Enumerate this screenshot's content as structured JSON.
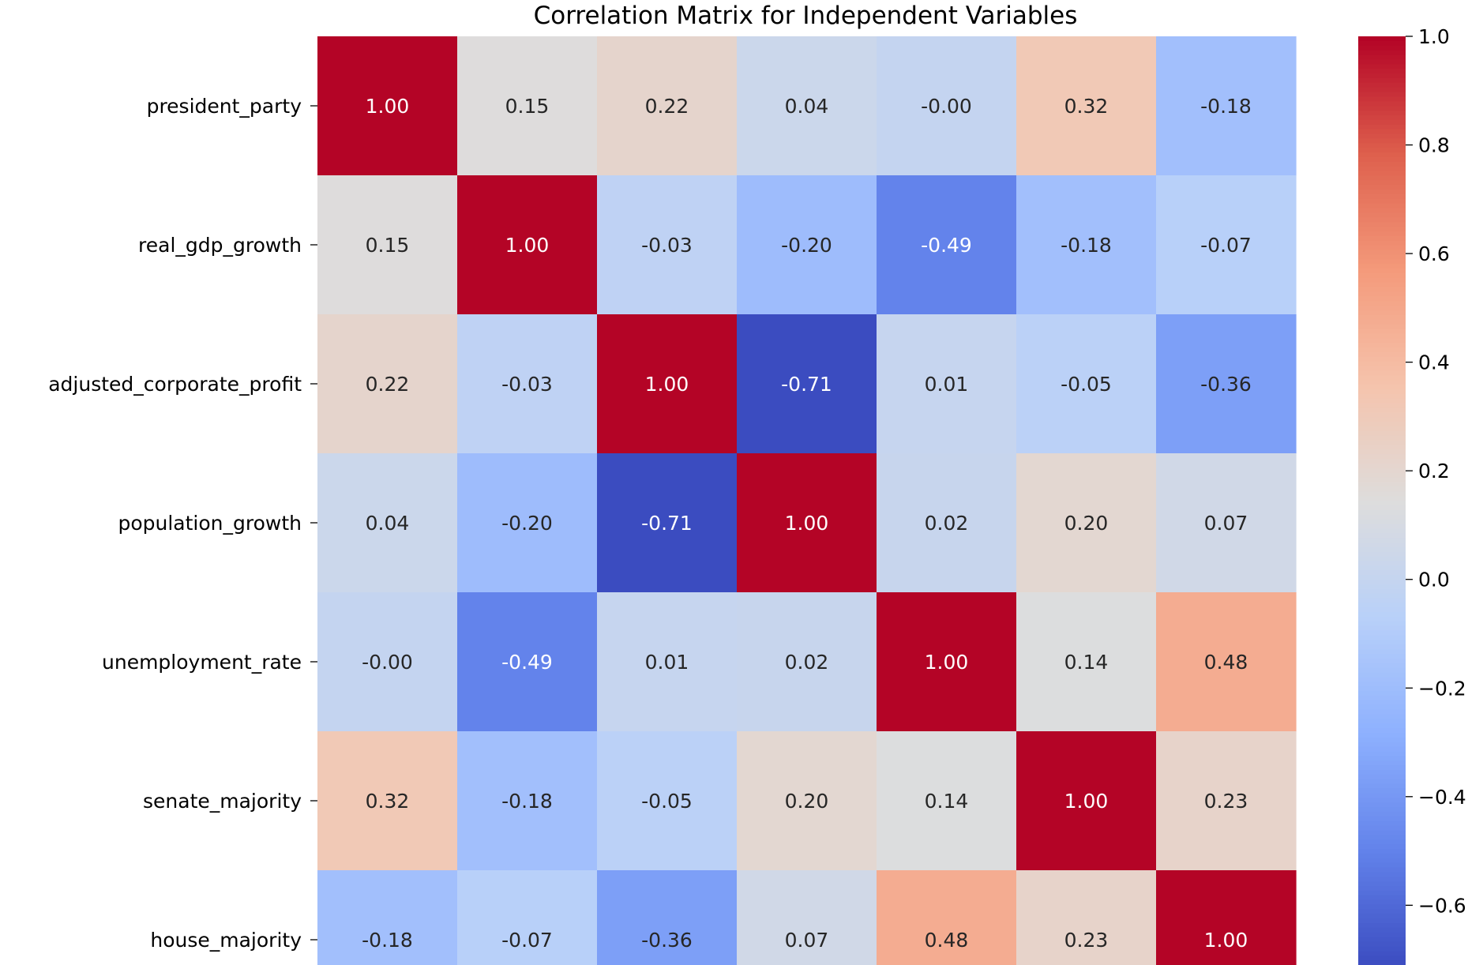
{
  "chart_data": {
    "type": "heatmap",
    "title": "Correlation Matrix for Independent Variables",
    "rows": [
      "president_party",
      "real_gdp_growth",
      "adjusted_corporate_profit",
      "population_growth",
      "unemployment_rate",
      "senate_majority",
      "house_majority"
    ],
    "values": [
      [
        1.0,
        0.15,
        0.22,
        0.04,
        -0.0,
        0.32,
        -0.18
      ],
      [
        0.15,
        1.0,
        -0.03,
        -0.2,
        -0.49,
        -0.18,
        -0.07
      ],
      [
        0.22,
        -0.03,
        1.0,
        -0.71,
        0.01,
        -0.05,
        -0.36
      ],
      [
        0.04,
        -0.2,
        -0.71,
        1.0,
        0.02,
        0.2,
        0.07
      ],
      [
        -0.0,
        -0.49,
        0.01,
        0.02,
        1.0,
        0.14,
        0.48
      ],
      [
        0.32,
        -0.18,
        -0.05,
        0.2,
        0.14,
        1.0,
        0.23
      ],
      [
        -0.18,
        -0.07,
        -0.36,
        0.07,
        0.48,
        0.23,
        1.0
      ]
    ],
    "cell_labels": [
      [
        "1.00",
        "0.15",
        "0.22",
        "0.04",
        "-0.00",
        "0.32",
        "-0.18"
      ],
      [
        "0.15",
        "1.00",
        "-0.03",
        "-0.20",
        "-0.49",
        "-0.18",
        "-0.07"
      ],
      [
        "0.22",
        "-0.03",
        "1.00",
        "-0.71",
        "0.01",
        "-0.05",
        "-0.36"
      ],
      [
        "0.04",
        "-0.20",
        "-0.71",
        "1.00",
        "0.02",
        "0.20",
        "0.07"
      ],
      [
        "-0.00",
        "-0.49",
        "0.01",
        "0.02",
        "1.00",
        "0.14",
        "0.48"
      ],
      [
        "0.32",
        "-0.18",
        "-0.05",
        "0.20",
        "0.14",
        "1.00",
        "0.23"
      ],
      [
        "-0.18",
        "-0.07",
        "-0.36",
        "0.07",
        "0.48",
        "0.23",
        "1.00"
      ]
    ],
    "colormap": "coolwarm",
    "color_range": [
      -0.71,
      1.0
    ],
    "colorbar": {
      "ticks": [
        1.0,
        0.8,
        0.6,
        0.4,
        0.2,
        0.0,
        -0.2,
        -0.4,
        -0.6
      ],
      "tick_labels": [
        "1.0",
        "0.8",
        "0.6",
        "0.4",
        "0.2",
        "0.0",
        "−0.2",
        "−0.4",
        "−0.6"
      ]
    }
  }
}
